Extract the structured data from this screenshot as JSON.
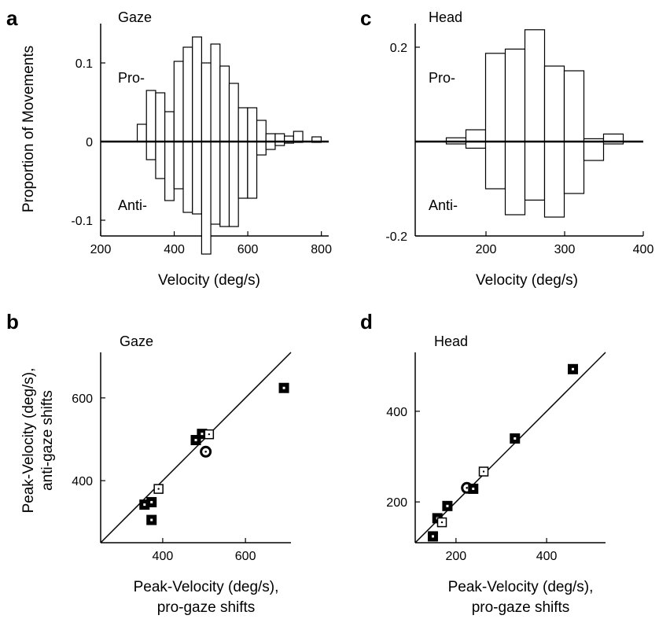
{
  "chart_data": [
    {
      "panel": "a",
      "type": "bar",
      "title": "Gaze",
      "xlabel": "Velocity (deg/s)",
      "ylabel": "Proportion of Movements",
      "annotations": [
        "Pro-",
        "Anti-"
      ],
      "bin_width": 25,
      "xlim": [
        200,
        820
      ],
      "ylim": [
        -0.145,
        0.15
      ],
      "xticks": [
        "200",
        "400",
        "600",
        "800"
      ],
      "yticks": [
        "0.1",
        "0",
        "-0.1"
      ],
      "series": [
        {
          "name": "Pro-",
          "x": [
            312,
            337,
            362,
            387,
            412,
            437,
            462,
            487,
            512,
            537,
            562,
            587,
            612,
            637,
            662,
            687,
            712,
            737,
            762,
            787
          ],
          "values": [
            0.022,
            0.065,
            0.062,
            0.038,
            0.102,
            0.12,
            0.133,
            0.1,
            0.124,
            0.096,
            0.074,
            0.043,
            0.043,
            0.027,
            0.01,
            0.01,
            0.007,
            0.013,
            0,
            0.006
          ]
        },
        {
          "name": "Anti-",
          "x": [
            312,
            337,
            362,
            387,
            412,
            437,
            462,
            487,
            512,
            537,
            562,
            587,
            612,
            637,
            662,
            687,
            712,
            737,
            762,
            787
          ],
          "values": [
            0,
            -0.023,
            -0.047,
            -0.075,
            -0.06,
            -0.09,
            -0.092,
            -0.143,
            -0.105,
            -0.108,
            -0.108,
            -0.072,
            -0.072,
            -0.017,
            -0.01,
            -0.005,
            -0.002,
            -0.001,
            0,
            -0.001
          ]
        }
      ]
    },
    {
      "panel": "b",
      "type": "scatter",
      "title": "Gaze",
      "xlabel_lines": [
        "Peak-Velocity (deg/s),",
        "pro-gaze shifts"
      ],
      "ylabel_lines": [
        "Peak-Velocity (deg/s),",
        "anti-gaze shifts"
      ],
      "xlim": [
        250,
        710
      ],
      "ylim": [
        250,
        710
      ],
      "xticks": [
        "400",
        "600"
      ],
      "yticks": [
        "600",
        "400"
      ],
      "unity_line": true,
      "points": [
        {
          "x": 693,
          "y": 624,
          "marker": "filled-square"
        },
        {
          "x": 495,
          "y": 513,
          "marker": "filled-square"
        },
        {
          "x": 512,
          "y": 512,
          "marker": "open-square"
        },
        {
          "x": 480,
          "y": 498,
          "marker": "filled-square"
        },
        {
          "x": 504,
          "y": 470,
          "marker": "circle"
        },
        {
          "x": 390,
          "y": 380,
          "marker": "open-square"
        },
        {
          "x": 373,
          "y": 348,
          "marker": "filled-square"
        },
        {
          "x": 356,
          "y": 342,
          "marker": "filled-square"
        },
        {
          "x": 373,
          "y": 305,
          "marker": "filled-square"
        }
      ]
    },
    {
      "panel": "c",
      "type": "bar",
      "title": "Head",
      "xlabel": "Velocity (deg/s)",
      "annotations": [
        "Pro-",
        "Anti-"
      ],
      "bin_width": 25,
      "xlim": [
        110,
        400
      ],
      "ylim": [
        -0.24,
        0.25
      ],
      "xticks": [
        "200",
        "300",
        "400"
      ],
      "yticks": [
        "0.2",
        "-0.2"
      ],
      "series": [
        {
          "name": "Pro-",
          "x": [
            162,
            187,
            212,
            237,
            262,
            287,
            312,
            337,
            362
          ],
          "values": [
            0.008,
            0.025,
            0.187,
            0.196,
            0.237,
            0.16,
            0.15,
            0.006,
            0.016
          ]
        },
        {
          "name": "Anti-",
          "x": [
            162,
            187,
            212,
            237,
            262,
            287,
            312,
            337,
            362
          ],
          "values": [
            -0.005,
            -0.014,
            -0.1,
            -0.155,
            -0.124,
            -0.16,
            -0.11,
            -0.04,
            -0.005
          ]
        }
      ]
    },
    {
      "panel": "d",
      "type": "scatter",
      "title": "Head",
      "xlabel_lines": [
        "Peak-Velocity (deg/s),",
        "pro-gaze shifts"
      ],
      "xlim": [
        110,
        530
      ],
      "ylim": [
        110,
        530
      ],
      "xticks": [
        "200",
        "400"
      ],
      "yticks": [
        "400",
        "200"
      ],
      "unity_line": true,
      "points": [
        {
          "x": 458,
          "y": 493,
          "marker": "filled-square"
        },
        {
          "x": 330,
          "y": 340,
          "marker": "filled-square"
        },
        {
          "x": 261,
          "y": 267,
          "marker": "open-square"
        },
        {
          "x": 224,
          "y": 231,
          "marker": "circle"
        },
        {
          "x": 238,
          "y": 229,
          "marker": "filled-square"
        },
        {
          "x": 181,
          "y": 191,
          "marker": "filled-square"
        },
        {
          "x": 159,
          "y": 164,
          "marker": "filled-square"
        },
        {
          "x": 169,
          "y": 155,
          "marker": "open-square"
        },
        {
          "x": 149,
          "y": 124,
          "marker": "filled-square"
        }
      ]
    }
  ]
}
